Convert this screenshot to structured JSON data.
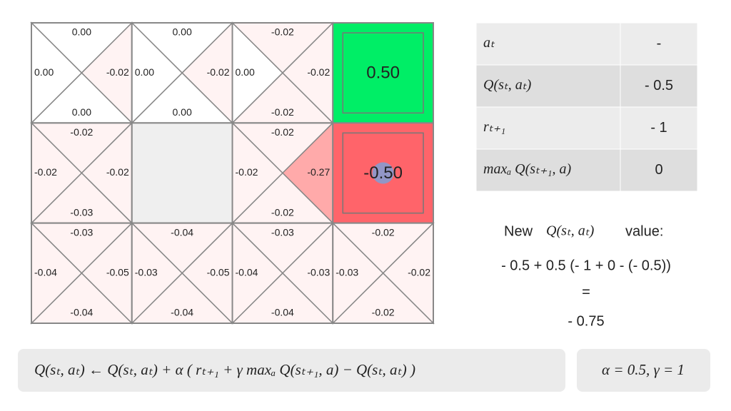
{
  "grid": {
    "rows": [
      [
        {
          "kind": "q",
          "up": "0.00",
          "right": "-0.02",
          "down": "0.00",
          "left": "0.00"
        },
        {
          "kind": "q",
          "up": "0.00",
          "right": "-0.02",
          "down": "0.00",
          "left": "0.00"
        },
        {
          "kind": "q",
          "up": "-0.02",
          "right": "-0.02",
          "down": "-0.02",
          "left": "0.00"
        },
        {
          "kind": "terminal",
          "value": "0.50",
          "color": "#00ee66"
        }
      ],
      [
        {
          "kind": "q",
          "up": "-0.02",
          "right": "-0.02",
          "down": "-0.03",
          "left": "-0.02"
        },
        {
          "kind": "wall"
        },
        {
          "kind": "q",
          "up": "-0.02",
          "right": "-0.27",
          "down": "-0.02",
          "left": "-0.02",
          "highlight": "right"
        },
        {
          "kind": "terminal",
          "value": "-0.50",
          "color": "#ff646a",
          "agent": true
        }
      ],
      [
        {
          "kind": "q",
          "up": "-0.03",
          "right": "-0.05",
          "down": "-0.04",
          "left": "-0.04"
        },
        {
          "kind": "q",
          "up": "-0.04",
          "right": "-0.05",
          "down": "-0.04",
          "left": "-0.03"
        },
        {
          "kind": "q",
          "up": "-0.03",
          "right": "-0.03",
          "down": "-0.04",
          "left": "-0.04"
        },
        {
          "kind": "q",
          "up": "-0.02",
          "right": "-0.02",
          "down": "-0.02",
          "left": "-0.03"
        }
      ]
    ]
  },
  "table": {
    "rows": [
      [
        "aₜ",
        "-"
      ],
      [
        "Q(sₜ, aₜ)",
        "- 0.5"
      ],
      [
        "rₜ₊₁",
        "- 1"
      ],
      [
        "maxₐ Q(sₜ₊₁, a)",
        "0"
      ]
    ]
  },
  "update": {
    "heading_prefix": "New",
    "heading_math": "Q(sₜ, aₜ)",
    "heading_suffix": "value:",
    "expression": "- 0.5 + 0.5 (- 1 + 0 - (- 0.5))",
    "equals": "=",
    "result": "- 0.75"
  },
  "formula": "Q(sₜ, aₜ)  ← Q(sₜ, aₜ) + α ( rₜ₊₁ + γ maxₐ Q(sₜ₊₁, a) − Q(sₜ, aₜ) )",
  "parameters": "α = 0.5,  γ = 1"
}
